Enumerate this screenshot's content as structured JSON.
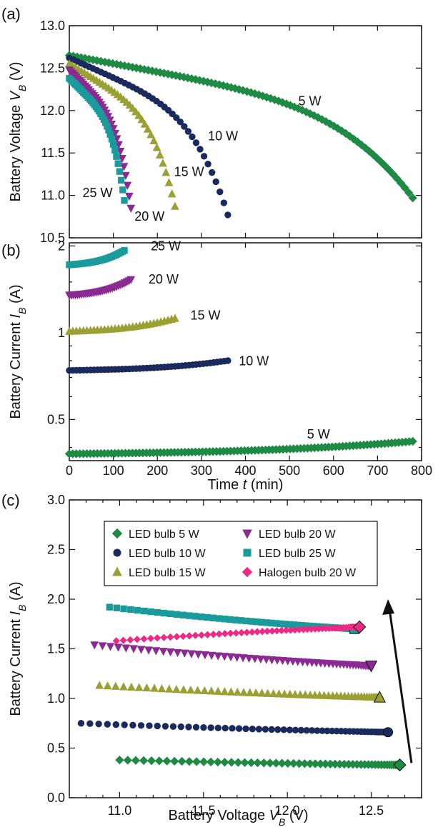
{
  "colors": {
    "w5": "#1e8a44",
    "w10": "#1b2a5c",
    "w15": "#9aa033",
    "w20": "#8a2a92",
    "w25": "#1a9a9a",
    "halogen": "#ec2a86"
  },
  "chart_data": [
    {
      "id": "a",
      "panel_label": "(a)",
      "type": "scatter",
      "ylabel": "Battery Voltage V",
      "ylabel_sub": "B",
      "ylabel_unit": " (V)",
      "xlim": [
        0,
        800
      ],
      "ylim": [
        10.5,
        13.0
      ],
      "yticks": [
        "10.5",
        "11.0",
        "11.5",
        "12.0",
        "12.5",
        "13.0"
      ],
      "series": [
        {
          "name": "5 W",
          "color_key": "w5",
          "marker": "diamond",
          "t_end": 780,
          "v0": 12.65,
          "v1": 10.97,
          "k": 1.0,
          "shape": "slow"
        },
        {
          "name": "10 W",
          "color_key": "w10",
          "marker": "circle",
          "t_end": 360,
          "v0": 12.62,
          "v1": 10.77,
          "k": 1.0,
          "shape": "mid"
        },
        {
          "name": "15 W",
          "color_key": "w15",
          "marker": "triangle-up",
          "t_end": 240,
          "v0": 12.55,
          "v1": 10.87,
          "k": 1.0,
          "shape": "mid"
        },
        {
          "name": "20 W",
          "color_key": "w20",
          "marker": "triangle-down",
          "t_end": 140,
          "v0": 12.48,
          "v1": 10.85,
          "k": 1.0,
          "shape": "mid"
        },
        {
          "name": "25 W",
          "color_key": "w25",
          "marker": "square",
          "t_end": 125,
          "v0": 12.38,
          "v1": 10.94,
          "k": 1.0,
          "shape": "mid"
        }
      ],
      "annotations": [
        {
          "text": "5 W",
          "x": 520,
          "y": 12.06
        },
        {
          "text": "10 W",
          "x": 315,
          "y": 11.65
        },
        {
          "text": "15 W",
          "x": 238,
          "y": 11.23
        },
        {
          "text": "25 W",
          "x": 30,
          "y": 10.98
        },
        {
          "text": "20 W",
          "x": 148,
          "y": 10.7
        }
      ]
    },
    {
      "id": "b",
      "panel_label": "(b)",
      "type": "scatter",
      "ylabel": "Battery Current I",
      "ylabel_sub": "B",
      "ylabel_unit": " (A)",
      "xlabel": "Time t (min)",
      "xlabel_italic": "t",
      "xlim": [
        0,
        800
      ],
      "ylim": [
        0.36,
        2.05
      ],
      "ylog": true,
      "yticks": [
        "0.5",
        "1",
        "2"
      ],
      "ytick_values": [
        0.5,
        1,
        2
      ],
      "xticks": [
        "0",
        "100",
        "200",
        "300",
        "400",
        "500",
        "600",
        "700",
        "800"
      ],
      "series": [
        {
          "name": "5 W",
          "color_key": "w5",
          "marker": "diamond",
          "t_end": 780,
          "i0": 0.38,
          "i1": 0.42
        },
        {
          "name": "10 W",
          "color_key": "w10",
          "marker": "circle",
          "t_end": 360,
          "i0": 0.74,
          "i1": 0.8
        },
        {
          "name": "15 W",
          "color_key": "w15",
          "marker": "triangle-up",
          "t_end": 240,
          "i0": 1.01,
          "i1": 1.12
        },
        {
          "name": "20 W",
          "color_key": "w20",
          "marker": "triangle-down",
          "t_end": 140,
          "i0": 1.35,
          "i1": 1.53
        },
        {
          "name": "25 W",
          "color_key": "w25",
          "marker": "square",
          "t_end": 125,
          "i0": 1.72,
          "i1": 1.93
        }
      ],
      "annotations": [
        {
          "text": "25 W",
          "x": 185,
          "y": 1.93
        },
        {
          "text": "20 W",
          "x": 180,
          "y": 1.48
        },
        {
          "text": "15 W",
          "x": 275,
          "y": 1.11
        },
        {
          "text": "10 W",
          "x": 385,
          "y": 0.77
        },
        {
          "text": "5 W",
          "x": 540,
          "y": 0.43
        }
      ]
    },
    {
      "id": "c",
      "panel_label": "(c)",
      "type": "scatter",
      "ylabel": "Battery Current I",
      "ylabel_sub": "B",
      "ylabel_unit": " (A)",
      "xlabel": "Battery Voltage V",
      "xlabel_sub": "B",
      "xlabel_unit": " (V)",
      "xlim": [
        10.7,
        12.8
      ],
      "ylim": [
        0.0,
        3.0
      ],
      "xticks": [
        "11.0",
        "11.5",
        "12.0",
        "12.5"
      ],
      "xtick_values": [
        11.0,
        11.5,
        12.0,
        12.5
      ],
      "yticks": [
        "0.0",
        "0.5",
        "1.0",
        "1.5",
        "2.0",
        "2.5",
        "3.0"
      ],
      "ytick_values": [
        0.0,
        0.5,
        1.0,
        1.5,
        2.0,
        2.5,
        3.0
      ],
      "series": [
        {
          "name": "LED bulb 5 W",
          "color_key": "w5",
          "marker": "diamond",
          "v_start": 11.0,
          "v_end": 12.67,
          "i_start": 0.38,
          "i_end": 0.33
        },
        {
          "name": "LED bulb 10 W",
          "color_key": "w10",
          "marker": "circle",
          "v_start": 10.77,
          "v_end": 12.6,
          "i_start": 0.75,
          "i_end": 0.66
        },
        {
          "name": "LED bulb 15 W",
          "color_key": "w15",
          "marker": "triangle-up",
          "v_start": 10.88,
          "v_end": 12.55,
          "i_start": 1.13,
          "i_end": 1.01
        },
        {
          "name": "LED bulb 20 W",
          "color_key": "w20",
          "marker": "triangle-down",
          "v_start": 10.85,
          "v_end": 12.5,
          "i_start": 1.54,
          "i_end": 1.33
        },
        {
          "name": "LED bulb 25 W",
          "color_key": "w25",
          "marker": "square",
          "v_start": 10.94,
          "v_end": 12.4,
          "i_start": 1.92,
          "i_end": 1.7
        },
        {
          "name": "Halogen bulb 20 W",
          "color_key": "halogen",
          "marker": "diamond",
          "v_start": 10.98,
          "v_end": 12.43,
          "i_start": 1.58,
          "i_end": 1.72
        }
      ],
      "legend": {
        "position": "top"
      }
    }
  ]
}
